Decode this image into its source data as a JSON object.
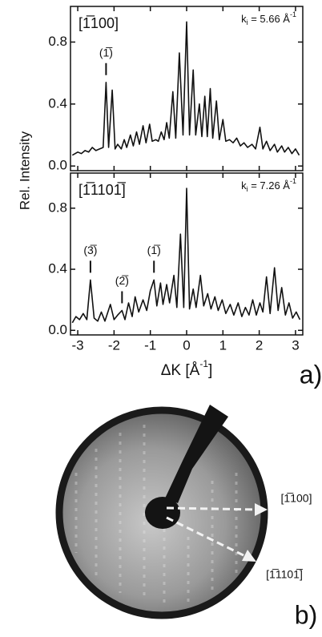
{
  "chart_data": [
    {
      "type": "line",
      "panel_title": "[1̅100]",
      "ki_parts": [
        "k",
        "i",
        " = 5.66 Å",
        "-1"
      ],
      "x": [
        -3.15,
        -3.0,
        -2.9,
        -2.8,
        -2.7,
        -2.6,
        -2.5,
        -2.4,
        -2.3,
        -2.22,
        -2.15,
        -2.05,
        -1.97,
        -1.9,
        -1.8,
        -1.72,
        -1.65,
        -1.55,
        -1.47,
        -1.38,
        -1.3,
        -1.2,
        -1.12,
        -1.02,
        -0.95,
        -0.85,
        -0.78,
        -0.7,
        -0.62,
        -0.55,
        -0.48,
        -0.38,
        -0.3,
        -0.2,
        -0.1,
        0.0,
        0.08,
        0.18,
        0.25,
        0.35,
        0.42,
        0.5,
        0.57,
        0.65,
        0.72,
        0.82,
        0.9,
        1.0,
        1.08,
        1.18,
        1.28,
        1.38,
        1.48,
        1.58,
        1.68,
        1.8,
        1.9,
        2.02,
        2.1,
        2.2,
        2.3,
        2.42,
        2.5,
        2.62,
        2.7,
        2.8,
        2.9,
        3.0,
        3.1
      ],
      "values": [
        0.07,
        0.09,
        0.08,
        0.1,
        0.09,
        0.12,
        0.1,
        0.11,
        0.12,
        0.54,
        0.12,
        0.49,
        0.11,
        0.14,
        0.11,
        0.17,
        0.12,
        0.2,
        0.13,
        0.22,
        0.14,
        0.26,
        0.15,
        0.27,
        0.16,
        0.17,
        0.16,
        0.22,
        0.17,
        0.28,
        0.18,
        0.48,
        0.18,
        0.73,
        0.2,
        0.93,
        0.2,
        0.62,
        0.2,
        0.4,
        0.19,
        0.45,
        0.19,
        0.5,
        0.18,
        0.42,
        0.17,
        0.3,
        0.16,
        0.17,
        0.15,
        0.18,
        0.13,
        0.15,
        0.12,
        0.14,
        0.11,
        0.25,
        0.11,
        0.16,
        0.1,
        0.14,
        0.09,
        0.13,
        0.09,
        0.12,
        0.08,
        0.11,
        0.07
      ],
      "color": "#111111",
      "annotations": [
        {
          "text": "(1̅)",
          "x": -2.22
        }
      ],
      "xlim": [
        -3.2,
        3.2
      ],
      "ylim": [
        -0.03,
        1.03
      ],
      "xticks": [
        -3,
        -2,
        -1,
        0,
        1,
        2,
        3
      ],
      "yticks": [
        {
          "value": 0,
          "label": "0.0"
        },
        0.4,
        0.8
      ]
    },
    {
      "type": "line",
      "panel_title": "[1̅1101̅]",
      "ki_parts": [
        "k",
        "i",
        " = 7.26 Å",
        "-1"
      ],
      "x": [
        -3.15,
        -3.05,
        -2.95,
        -2.85,
        -2.75,
        -2.65,
        -2.55,
        -2.45,
        -2.35,
        -2.25,
        -2.1,
        -2.0,
        -1.9,
        -1.78,
        -1.7,
        -1.6,
        -1.5,
        -1.42,
        -1.32,
        -1.2,
        -1.1,
        -1.0,
        -0.9,
        -0.82,
        -0.72,
        -0.65,
        -0.55,
        -0.47,
        -0.35,
        -0.27,
        -0.17,
        -0.08,
        0.0,
        0.08,
        0.18,
        0.26,
        0.38,
        0.47,
        0.58,
        0.67,
        0.78,
        0.87,
        0.98,
        1.08,
        1.2,
        1.3,
        1.42,
        1.52,
        1.62,
        1.72,
        1.82,
        1.92,
        2.02,
        2.1,
        2.2,
        2.3,
        2.42,
        2.52,
        2.62,
        2.72,
        2.82,
        2.92,
        3.02,
        3.12
      ],
      "values": [
        0.05,
        0.09,
        0.07,
        0.11,
        0.07,
        0.33,
        0.08,
        0.06,
        0.12,
        0.06,
        0.17,
        0.07,
        0.1,
        0.13,
        0.07,
        0.18,
        0.09,
        0.22,
        0.12,
        0.2,
        0.13,
        0.26,
        0.33,
        0.16,
        0.31,
        0.17,
        0.3,
        0.18,
        0.36,
        0.15,
        0.63,
        0.15,
        0.93,
        0.14,
        0.27,
        0.15,
        0.36,
        0.16,
        0.24,
        0.14,
        0.22,
        0.13,
        0.2,
        0.11,
        0.17,
        0.1,
        0.18,
        0.09,
        0.15,
        0.1,
        0.2,
        0.1,
        0.18,
        0.12,
        0.35,
        0.11,
        0.41,
        0.13,
        0.28,
        0.1,
        0.18,
        0.08,
        0.12,
        0.07
      ],
      "color": "#111111",
      "annotations": [
        {
          "text": "(3̅)",
          "x": -2.65
        },
        {
          "text": "(2̅)",
          "x": -1.78
        },
        {
          "text": "(1̅)",
          "x": -0.9
        }
      ],
      "xlim": [
        -3.2,
        3.2
      ],
      "ylim": [
        -0.03,
        1.03
      ],
      "xticks": [
        -3,
        -2,
        -1,
        0,
        1,
        2,
        3
      ],
      "yticks": [
        {
          "value": 0,
          "label": "0.0"
        },
        0.4,
        0.8
      ]
    }
  ],
  "shared": {
    "ylabel": "Rel. Intensity",
    "xlabel_parts": [
      "ΔK [Å",
      "-1",
      "]"
    ],
    "panel_label": "a)"
  },
  "image_panel": {
    "panel_label": "b)",
    "directions": [
      "[1̅100]",
      "[1̅1101̅]"
    ]
  }
}
